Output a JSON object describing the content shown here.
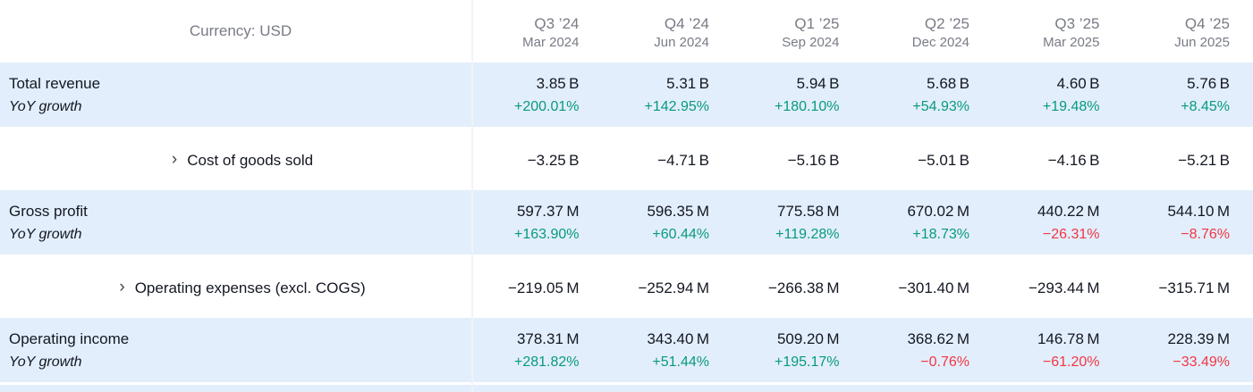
{
  "header": {
    "currency_label": "Currency: USD",
    "columns": [
      {
        "quarter": "Q3 ’24",
        "date": "Mar 2024"
      },
      {
        "quarter": "Q4 ’24",
        "date": "Jun 2024"
      },
      {
        "quarter": "Q1 ’25",
        "date": "Sep 2024"
      },
      {
        "quarter": "Q2 ’25",
        "date": "Dec 2024"
      },
      {
        "quarter": "Q3 ’25",
        "date": "Mar 2025"
      },
      {
        "quarter": "Q4 ’25",
        "date": "Jun 2025"
      }
    ]
  },
  "expand_icon": "›",
  "colors": {
    "positive": "#089981",
    "negative": "#f23645",
    "row_highlight": "#e2eefb",
    "text": "#131722",
    "muted": "#787b86"
  },
  "rows": [
    {
      "label": "Total revenue",
      "sub_label": "YoY growth",
      "expandable": false,
      "highlighted": true,
      "values": [
        "3.85 B",
        "5.31 B",
        "5.94 B",
        "5.68 B",
        "4.60 B",
        "5.76 B"
      ],
      "yoy": [
        "+200.01%",
        "+142.95%",
        "+180.10%",
        "+54.93%",
        "+19.48%",
        "+8.45%"
      ]
    },
    {
      "label": "Cost of goods sold",
      "expandable": true,
      "highlighted": false,
      "values": [
        "−3.25 B",
        "−4.71 B",
        "−5.16 B",
        "−5.01 B",
        "−4.16 B",
        "−5.21 B"
      ]
    },
    {
      "label": "Gross profit",
      "sub_label": "YoY growth",
      "expandable": false,
      "highlighted": true,
      "values": [
        "597.37 M",
        "596.35 M",
        "775.58 M",
        "670.02 M",
        "440.22 M",
        "544.10 M"
      ],
      "yoy": [
        "+163.90%",
        "+60.44%",
        "+119.28%",
        "+18.73%",
        "−26.31%",
        "−8.76%"
      ]
    },
    {
      "label": "Operating expenses (excl. COGS)",
      "expandable": true,
      "highlighted": false,
      "values": [
        "−219.05 M",
        "−252.94 M",
        "−266.38 M",
        "−301.40 M",
        "−293.44 M",
        "−315.71 M"
      ]
    },
    {
      "label": "Operating income",
      "sub_label": "YoY growth",
      "expandable": false,
      "highlighted": true,
      "values": [
        "378.31 M",
        "343.40 M",
        "509.20 M",
        "368.62 M",
        "146.78 M",
        "228.39 M"
      ],
      "yoy": [
        "+281.82%",
        "+51.44%",
        "+195.17%",
        "−0.76%",
        "−61.20%",
        "−33.49%"
      ]
    }
  ]
}
